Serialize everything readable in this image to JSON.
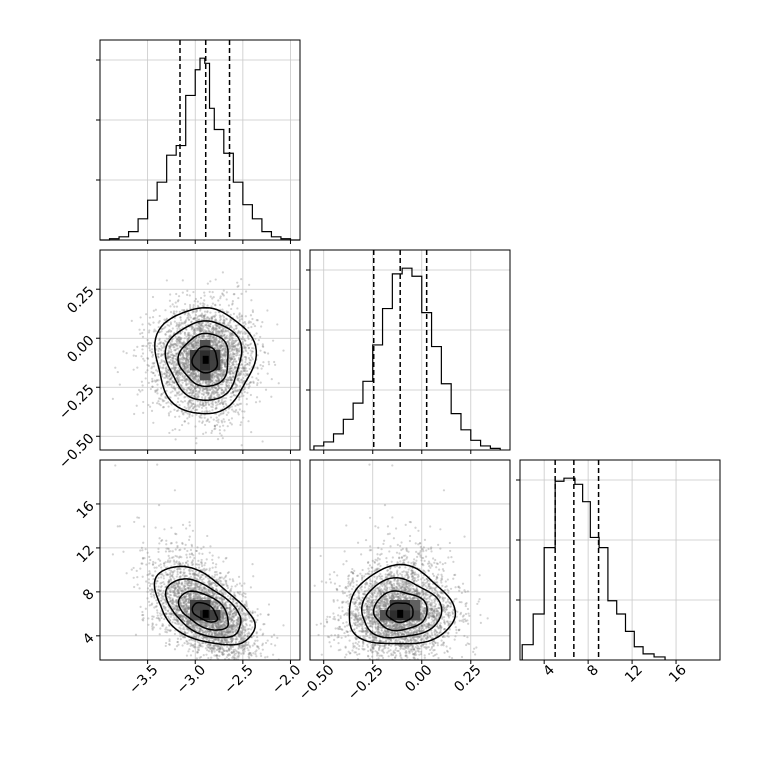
{
  "chart_data": {
    "type": "corner",
    "parameters": [
      {
        "ticks": [
          -3.5,
          -3.0,
          -2.5,
          -2.0
        ],
        "tick_labels": [
          "−3.5",
          "−3.0",
          "−2.5",
          "−2.0"
        ]
      },
      {
        "ticks": [
          -0.5,
          -0.25,
          0.0,
          0.25
        ],
        "tick_labels": [
          "−0.50",
          "−0.25",
          "0.00",
          "0.25"
        ]
      },
      {
        "ticks": [
          4,
          8,
          12,
          16
        ],
        "tick_labels": [
          "4",
          "8",
          "12",
          "16"
        ]
      }
    ],
    "diagonal": [
      {
        "range": [
          -4.0,
          -1.9
        ],
        "quantiles": [
          -3.16,
          -2.89,
          -2.64
        ],
        "bins": [
          -4.0,
          -3.9,
          -3.8,
          -3.7,
          -3.6,
          -3.5,
          -3.4,
          -3.3,
          -3.2,
          -3.1,
          -3.0,
          -2.95,
          -2.9,
          -2.85,
          -2.8,
          -2.7,
          -2.6,
          -2.5,
          -2.4,
          -2.3,
          -2.2,
          -2.1,
          -2.0,
          -1.9
        ],
        "counts": [
          0,
          2,
          5,
          13,
          33,
          62,
          90,
          132,
          147,
          225,
          265,
          283,
          275,
          205,
          172,
          135,
          90,
          55,
          33,
          13,
          5,
          2,
          0
        ]
      },
      {
        "range": [
          -0.57,
          0.45
        ],
        "quantiles": [
          -0.245,
          -0.11,
          0.025
        ],
        "bins": [
          -0.55,
          -0.5,
          -0.45,
          -0.4,
          -0.35,
          -0.3,
          -0.25,
          -0.2,
          -0.15,
          -0.1,
          -0.05,
          0.0,
          0.05,
          0.1,
          0.15,
          0.2,
          0.25,
          0.3,
          0.35,
          0.4
        ],
        "counts": [
          5,
          10,
          20,
          38,
          58,
          85,
          130,
          175,
          218,
          225,
          215,
          170,
          128,
          82,
          45,
          25,
          12,
          5,
          2
        ]
      },
      {
        "range": [
          1.8,
          20.0
        ],
        "quantiles": [
          5.0,
          6.7,
          8.95
        ],
        "bins": [
          2.0,
          3.0,
          4.0,
          5.0,
          5.8,
          6.8,
          7.5,
          8.2,
          9.0,
          9.8,
          10.6,
          11.4,
          12.2,
          13.0,
          14.0,
          15.0
        ],
        "counts": [
          15,
          45,
          110,
          175,
          178,
          172,
          155,
          120,
          110,
          58,
          45,
          28,
          13,
          6,
          3
        ]
      }
    ],
    "off_diagonal": [
      {
        "x_param": 0,
        "y_param": 1,
        "x_range": [
          -4.0,
          -1.9
        ],
        "y_range": [
          -0.57,
          0.45
        ],
        "peak": [
          -2.89,
          -0.11
        ],
        "correlation": 0.0
      },
      {
        "x_param": 0,
        "y_param": 2,
        "x_range": [
          -4.0,
          -1.9
        ],
        "y_range": [
          1.8,
          20.0
        ],
        "peak": [
          -2.89,
          6.0
        ],
        "correlation": -0.5
      },
      {
        "x_param": 1,
        "y_param": 2,
        "x_range": [
          -0.57,
          0.45
        ],
        "y_range": [
          1.8,
          20.0
        ],
        "peak": [
          -0.11,
          6.0
        ],
        "correlation": 0.0
      }
    ],
    "contour_levels": [
      0.118,
      0.393,
      0.675,
      0.865
    ],
    "grid": true,
    "quantile_line_style": "dashed"
  }
}
